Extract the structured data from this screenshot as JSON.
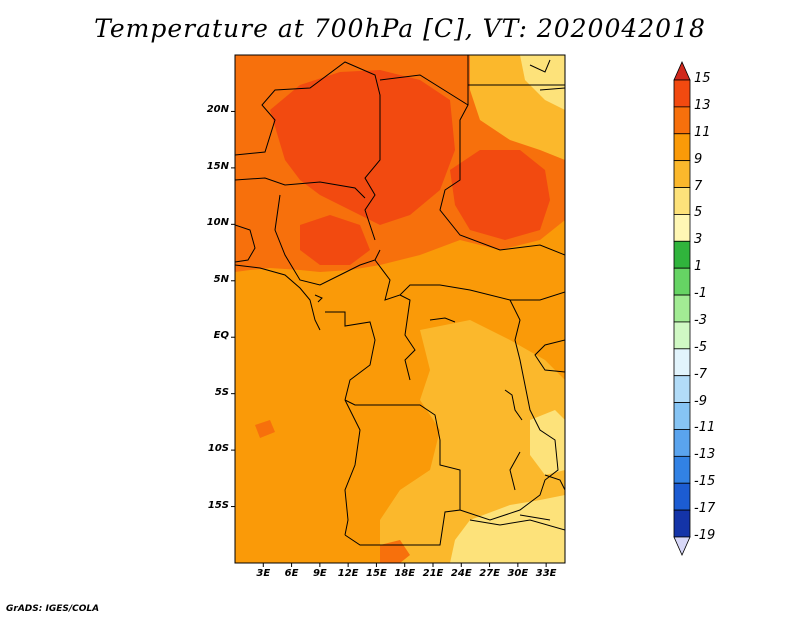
{
  "title": "Temperature at 700hPa [C], VT: 2020042018",
  "credit": "GrADS: IGES/COLA",
  "map": {
    "lat_labels": [
      "20N",
      "15N",
      "10N",
      "5N",
      "EQ",
      "5S",
      "10S",
      "15S"
    ],
    "lat_values": [
      20,
      15,
      10,
      5,
      0,
      -5,
      -10,
      -15
    ],
    "lon_labels": [
      "3E",
      "6E",
      "9E",
      "12E",
      "15E",
      "18E",
      "21E",
      "24E",
      "27E",
      "30E",
      "33E"
    ],
    "lon_values": [
      3,
      6,
      9,
      12,
      15,
      18,
      21,
      24,
      27,
      30,
      33
    ],
    "lon_range": [
      0,
      35
    ],
    "lat_range": [
      -20,
      25
    ]
  },
  "colorbar": {
    "labels": [
      "15",
      "13",
      "11",
      "9",
      "7",
      "5",
      "3",
      "1",
      "-1",
      "-3",
      "-5",
      "-7",
      "-9",
      "-11",
      "-13",
      "-15",
      "-17",
      "-19"
    ],
    "colors": [
      "#e02c14",
      "#f24a10",
      "#f7700c",
      "#fa9a08",
      "#fbb82c",
      "#fde27a",
      "#fff7b4",
      "#30b43c",
      "#66d464",
      "#a2ec94",
      "#d0f8c4",
      "#e2f4fc",
      "#b2dcf8",
      "#86c4f4",
      "#5aa4ee",
      "#3282e4",
      "#1c5cd2",
      "#1434a8",
      "#0c1478",
      "#d8d8f8"
    ],
    "top_triangle_color": "#d0281c",
    "bottom_triangle_color": "#d8d8f8"
  }
}
